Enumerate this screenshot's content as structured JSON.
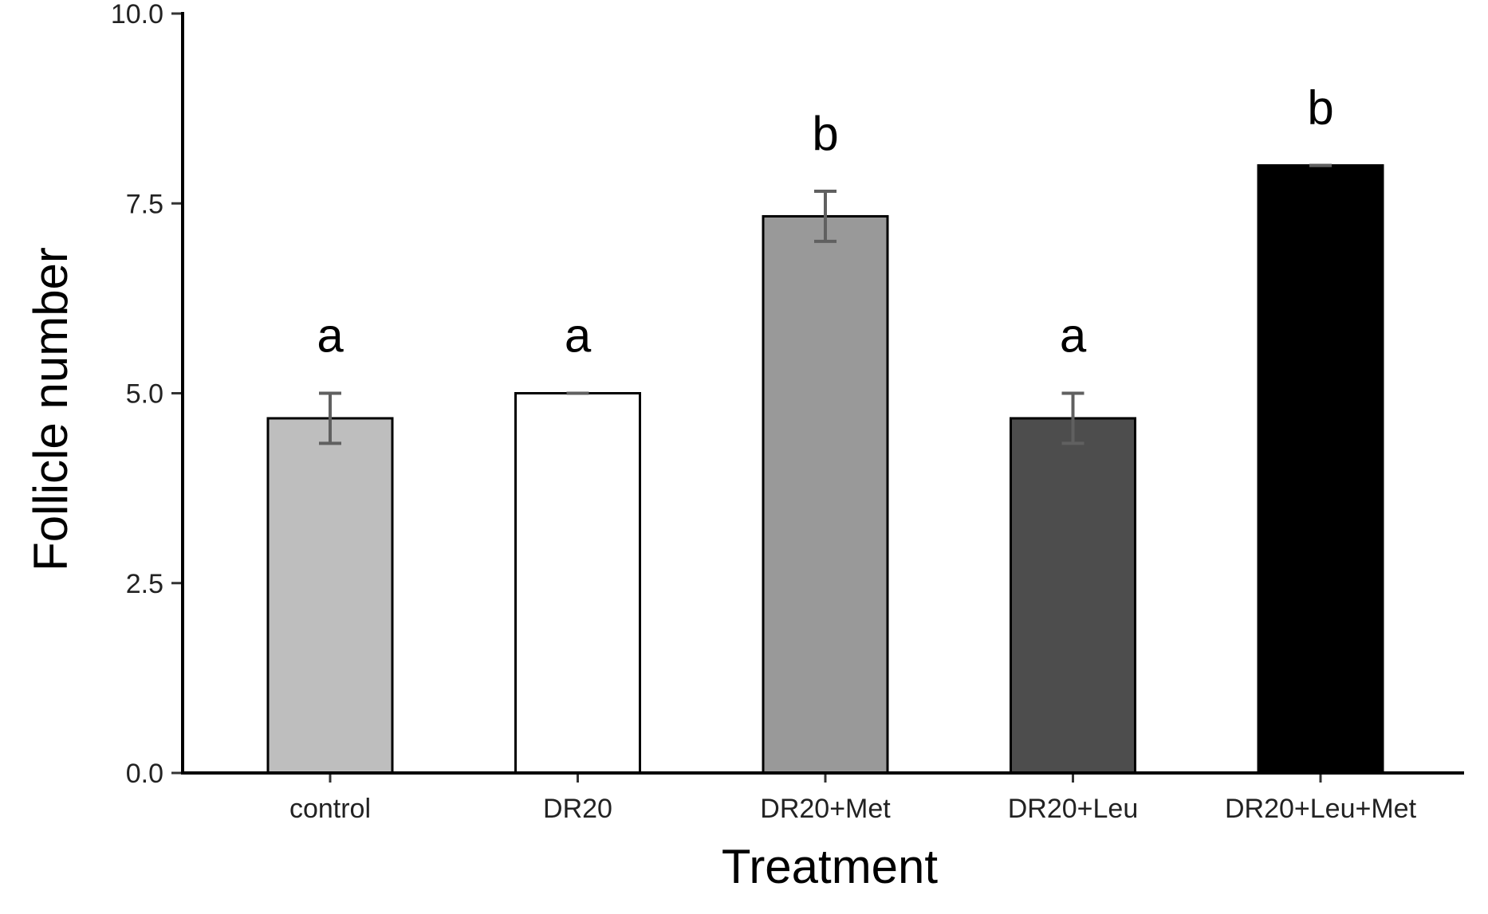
{
  "chart_data": {
    "type": "bar",
    "title": "",
    "xlabel": "Treatment",
    "ylabel": "Follicle number",
    "categories": [
      "control",
      "DR20",
      "DR20+Met",
      "DR20+Leu",
      "DR20+Leu+Met"
    ],
    "values": [
      4.67,
      5.0,
      7.33,
      4.67,
      8.0
    ],
    "errors": [
      0.33,
      0.0,
      0.33,
      0.33,
      0.0
    ],
    "significance": [
      "a",
      "a",
      "b",
      "a",
      "b"
    ],
    "bar_colors": [
      "#bebebe",
      "#ffffff",
      "#999999",
      "#4d4d4d",
      "#000000"
    ],
    "error_bar_color": "#606060",
    "ylim": [
      0,
      10
    ],
    "yticks": [
      "0.0",
      "2.5",
      "5.0",
      "7.5",
      "10.0"
    ],
    "grid": false,
    "legend": "none"
  }
}
